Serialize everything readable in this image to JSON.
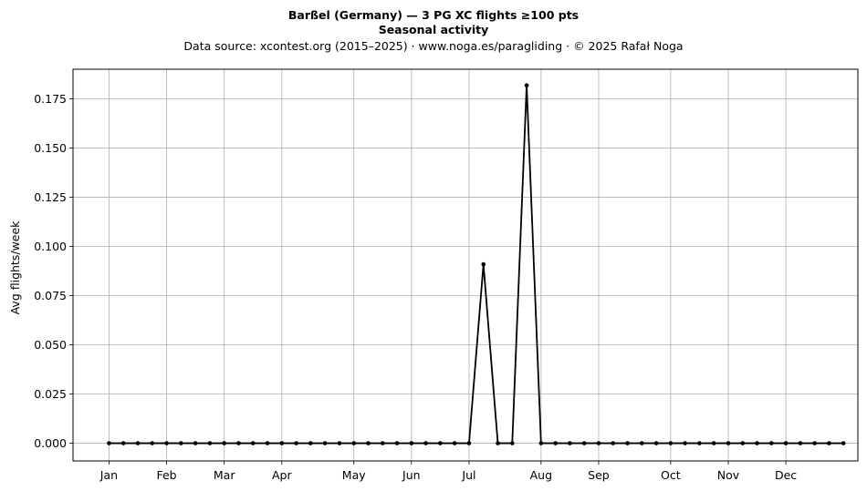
{
  "chart_data": {
    "type": "line",
    "title": "Barßel (Germany)  —  3 PG XC flights ≥100 pts",
    "subtitle": "Seasonal activity",
    "source_line": "Data source: xcontest.org (2015–2025)  ·  www.noga.es/paragliding  ·  © 2025 Rafał Noga",
    "ylabel": "Avg flights/week",
    "xlabel": "",
    "grid": true,
    "ylim": [
      -0.009,
      0.19
    ],
    "xlim": [
      0,
      54.5
    ],
    "yticks": [
      0.0,
      0.025,
      0.05,
      0.075,
      0.1,
      0.125,
      0.15,
      0.175
    ],
    "ytick_labels": [
      "0.000",
      "0.025",
      "0.050",
      "0.075",
      "0.100",
      "0.125",
      "0.150",
      "0.175"
    ],
    "xticks": [
      {
        "week": 2.5,
        "label": "Jan"
      },
      {
        "week": 6.5,
        "label": "Feb"
      },
      {
        "week": 10.5,
        "label": "Mar"
      },
      {
        "week": 14.5,
        "label": "Apr"
      },
      {
        "week": 19.5,
        "label": "May"
      },
      {
        "week": 23.5,
        "label": "Jun"
      },
      {
        "week": 27.5,
        "label": "Jul"
      },
      {
        "week": 32.5,
        "label": "Aug"
      },
      {
        "week": 36.5,
        "label": "Sep"
      },
      {
        "week": 41.5,
        "label": "Oct"
      },
      {
        "week": 45.5,
        "label": "Nov"
      },
      {
        "week": 49.5,
        "label": "Dec"
      }
    ],
    "series": [
      {
        "color": "#000000",
        "x": [
          2.5,
          3.5,
          4.5,
          5.5,
          6.5,
          7.5,
          8.5,
          9.5,
          10.5,
          11.5,
          12.5,
          13.5,
          14.5,
          15.5,
          16.5,
          17.5,
          18.5,
          19.5,
          20.5,
          21.5,
          22.5,
          23.5,
          24.5,
          25.5,
          26.5,
          27.5,
          28.5,
          29.5,
          30.5,
          31.5,
          32.5,
          33.5,
          34.5,
          35.5,
          36.5,
          37.5,
          38.5,
          39.5,
          40.5,
          41.5,
          42.5,
          43.5,
          44.5,
          45.5,
          46.5,
          47.5,
          48.5,
          49.5,
          50.5,
          51.5,
          52.5,
          53.5
        ],
        "values": [
          0,
          0,
          0,
          0,
          0,
          0,
          0,
          0,
          0,
          0,
          0,
          0,
          0,
          0,
          0,
          0,
          0,
          0,
          0,
          0,
          0,
          0,
          0,
          0,
          0,
          0,
          0.0909,
          0,
          0,
          0.1818,
          0,
          0,
          0,
          0,
          0,
          0,
          0,
          0,
          0,
          0,
          0,
          0,
          0,
          0,
          0,
          0,
          0,
          0,
          0,
          0,
          0,
          0
        ]
      }
    ]
  }
}
